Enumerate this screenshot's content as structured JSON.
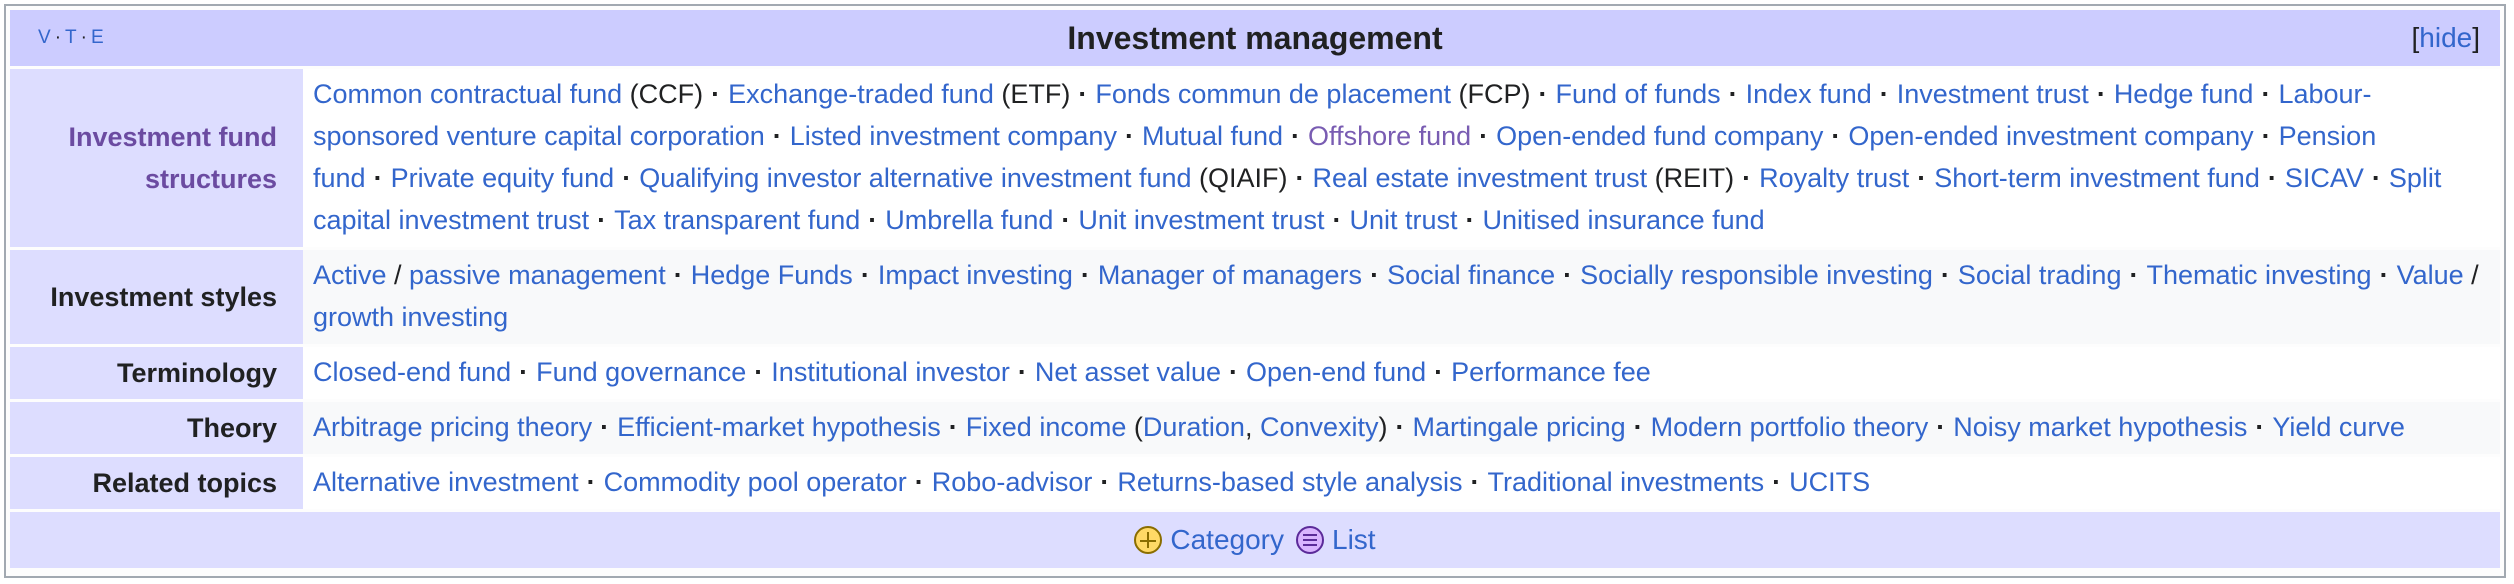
{
  "title": "Investment management",
  "vte": [
    "V",
    "T",
    "E"
  ],
  "hide": "hide",
  "groups": [
    {
      "label": "Investment fund structures",
      "items": [
        [
          "Common contractual fund",
          " (CCF)"
        ],
        [
          "Exchange-traded fund",
          " (ETF)"
        ],
        [
          "Fonds commun de placement",
          " (FCP)"
        ],
        [
          "Fund of funds"
        ],
        [
          "Index fund"
        ],
        [
          "Investment trust"
        ],
        [
          "Hedge fund"
        ],
        [
          "Labour-sponsored venture capital corporation"
        ],
        [
          "Listed investment company"
        ],
        [
          "Mutual fund"
        ],
        [
          "Offshore fund"
        ],
        [
          "Open-ended fund company"
        ],
        [
          "Open-ended investment company"
        ],
        [
          "Pension fund"
        ],
        [
          "Private equity fund"
        ],
        [
          "Qualifying investor alternative investment fund",
          " (QIAIF)"
        ],
        [
          "Real estate investment trust",
          " (REIT)"
        ],
        [
          "Royalty trust"
        ],
        [
          "Short-term investment fund"
        ],
        [
          "SICAV"
        ],
        [
          "Split capital investment trust"
        ],
        [
          "Tax transparent fund"
        ],
        [
          "Umbrella fund"
        ],
        [
          "Unit investment trust"
        ],
        [
          "Unit trust"
        ],
        [
          "Unitised insurance fund"
        ]
      ]
    },
    {
      "label": "Investment styles",
      "items": [
        [
          "Active"
        ],
        [
          "passive management"
        ],
        [
          "Hedge Funds"
        ],
        [
          "Impact investing"
        ],
        [
          "Manager of managers"
        ],
        [
          "Social finance"
        ],
        [
          "Socially responsible investing"
        ],
        [
          "Social trading"
        ],
        [
          "Thematic investing"
        ],
        [
          "Value"
        ],
        [
          "growth investing"
        ]
      ]
    },
    {
      "label": "Terminology",
      "items": [
        [
          "Closed-end fund"
        ],
        [
          "Fund governance"
        ],
        [
          "Institutional investor"
        ],
        [
          "Net asset value"
        ],
        [
          "Open-end fund"
        ],
        [
          "Performance fee"
        ]
      ]
    },
    {
      "label": "Theory",
      "items": [
        [
          "Arbitrage pricing theory"
        ],
        [
          "Efficient-market hypothesis"
        ],
        [
          "Fixed income"
        ],
        [
          "Duration"
        ],
        [
          "Convexity"
        ],
        [
          "Martingale pricing"
        ],
        [
          "Modern portfolio theory"
        ],
        [
          "Noisy market hypothesis"
        ],
        [
          "Yield curve"
        ]
      ]
    },
    {
      "label": "Related topics",
      "items": [
        [
          "Alternative investment"
        ],
        [
          "Commodity pool operator"
        ],
        [
          "Robo-advisor"
        ],
        [
          "Returns-based style analysis"
        ],
        [
          "Traditional investments"
        ],
        [
          "UCITS"
        ]
      ]
    }
  ],
  "separator": "·",
  "slash": "/",
  "paren_open": " (",
  "paren_close": ")",
  "comma": ", ",
  "footer": {
    "category": "Category",
    "list": "List"
  },
  "colors": {
    "link": "#3366cc",
    "visited": "#795cb2",
    "title_bg": "#ccccff",
    "group_bg": "#ddddff"
  }
}
